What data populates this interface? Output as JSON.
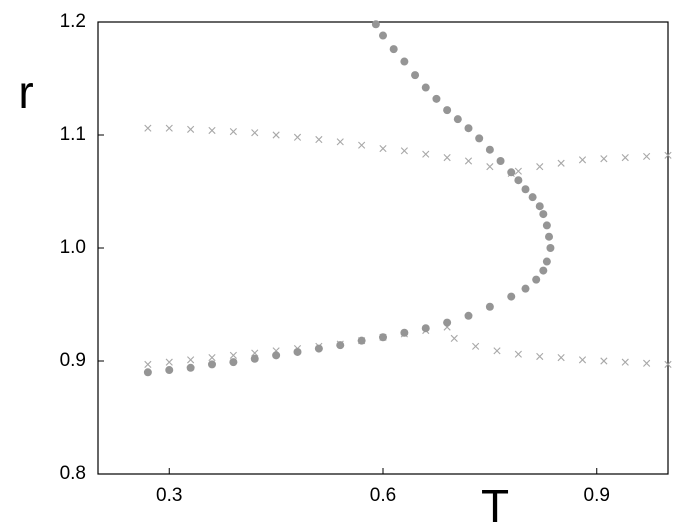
{
  "chart_data": {
    "type": "scatter",
    "x_label": "T",
    "y_label": "r",
    "xlim": [
      0.2,
      1.0
    ],
    "ylim": [
      0.8,
      1.2
    ],
    "xticks": [
      0.3,
      0.6,
      0.9
    ],
    "yticks": [
      0.8,
      0.9,
      {
        "value": 1,
        "label": "1.0"
      },
      1.1,
      1.2
    ],
    "series": [
      {
        "marker": "cross",
        "color": "#a8a8a8",
        "x": [
          0.27,
          0.3,
          0.33,
          0.36,
          0.39,
          0.42,
          0.45,
          0.48,
          0.51,
          0.54,
          0.57,
          0.6,
          0.63,
          0.66,
          0.69,
          0.72,
          0.75,
          0.78,
          0.79,
          0.82,
          0.85,
          0.88,
          0.91,
          0.94,
          0.97,
          1.0,
          0.27,
          0.3,
          0.33,
          0.36,
          0.39,
          0.42,
          0.45,
          0.48,
          0.51,
          0.54,
          0.57,
          0.6,
          0.63,
          0.66,
          0.69,
          0.7,
          0.73,
          0.76,
          0.79,
          0.82,
          0.85,
          0.88,
          0.91,
          0.94,
          0.97,
          1.0
        ],
        "values": [
          1.106,
          1.106,
          1.105,
          1.104,
          1.103,
          1.102,
          1.1,
          1.098,
          1.096,
          1.094,
          1.091,
          1.088,
          1.086,
          1.083,
          1.08,
          1.077,
          1.072,
          1.066,
          1.068,
          1.072,
          1.075,
          1.078,
          1.079,
          1.08,
          1.081,
          1.082,
          0.897,
          0.899,
          0.901,
          0.903,
          0.905,
          0.907,
          0.909,
          0.911,
          0.913,
          0.915,
          0.918,
          0.921,
          0.924,
          0.927,
          0.93,
          0.92,
          0.913,
          0.909,
          0.906,
          0.904,
          0.903,
          0.901,
          0.9,
          0.899,
          0.898,
          0.897
        ]
      },
      {
        "marker": "dot",
        "color": "#959595",
        "x": [
          0.27,
          0.3,
          0.33,
          0.36,
          0.39,
          0.42,
          0.45,
          0.48,
          0.51,
          0.54,
          0.57,
          0.6,
          0.63,
          0.66,
          0.69,
          0.72,
          0.75,
          0.78,
          0.8,
          0.815,
          0.825,
          0.83,
          0.835,
          0.833,
          0.83,
          0.825,
          0.82,
          0.81,
          0.8,
          0.79,
          0.78,
          0.765,
          0.75,
          0.735,
          0.72,
          0.705,
          0.69,
          0.675,
          0.66,
          0.645,
          0.63,
          0.615,
          0.6,
          0.59
        ],
        "values": [
          0.89,
          0.892,
          0.894,
          0.897,
          0.899,
          0.902,
          0.905,
          0.908,
          0.911,
          0.914,
          0.918,
          0.921,
          0.925,
          0.929,
          0.934,
          0.94,
          0.948,
          0.957,
          0.964,
          0.972,
          0.98,
          0.988,
          1.0,
          1.01,
          1.02,
          1.03,
          1.037,
          1.045,
          1.052,
          1.06,
          1.067,
          1.077,
          1.087,
          1.097,
          1.106,
          1.114,
          1.122,
          1.132,
          1.142,
          1.153,
          1.165,
          1.176,
          1.188,
          1.198
        ]
      }
    ]
  }
}
